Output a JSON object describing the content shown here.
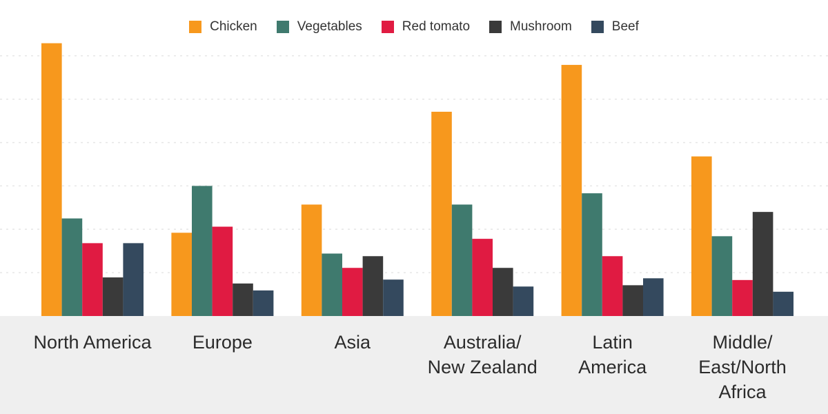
{
  "chart_data": {
    "type": "bar",
    "title": "",
    "xlabel": "",
    "ylabel": "",
    "ylim": [
      0,
      6.3
    ],
    "grid": true,
    "legend_position": "top-center",
    "categories": [
      "North America",
      "Europe",
      "Asia",
      "Australia/\nNew Zealand",
      "Latin\nAmerica",
      "Middle/\nEast/North\nAfrica"
    ],
    "series": [
      {
        "name": "Chicken",
        "color": "#f7981d",
        "values": [
          6.29,
          1.92,
          2.57,
          4.71,
          5.79,
          3.68
        ]
      },
      {
        "name": "Vegetables",
        "color": "#3f7a6e",
        "values": [
          2.25,
          3.0,
          1.44,
          2.57,
          2.83,
          1.84
        ]
      },
      {
        "name": "Red tomato",
        "color": "#e01b42",
        "values": [
          1.68,
          2.06,
          1.11,
          1.78,
          1.38,
          0.83
        ]
      },
      {
        "name": "Mushroom",
        "color": "#3a3a3a",
        "values": [
          0.89,
          0.75,
          1.38,
          1.11,
          0.71,
          2.4
        ]
      },
      {
        "name": "Beef",
        "color": "#34495e",
        "values": [
          1.68,
          0.59,
          0.84,
          0.68,
          0.87,
          0.56
        ]
      }
    ]
  }
}
